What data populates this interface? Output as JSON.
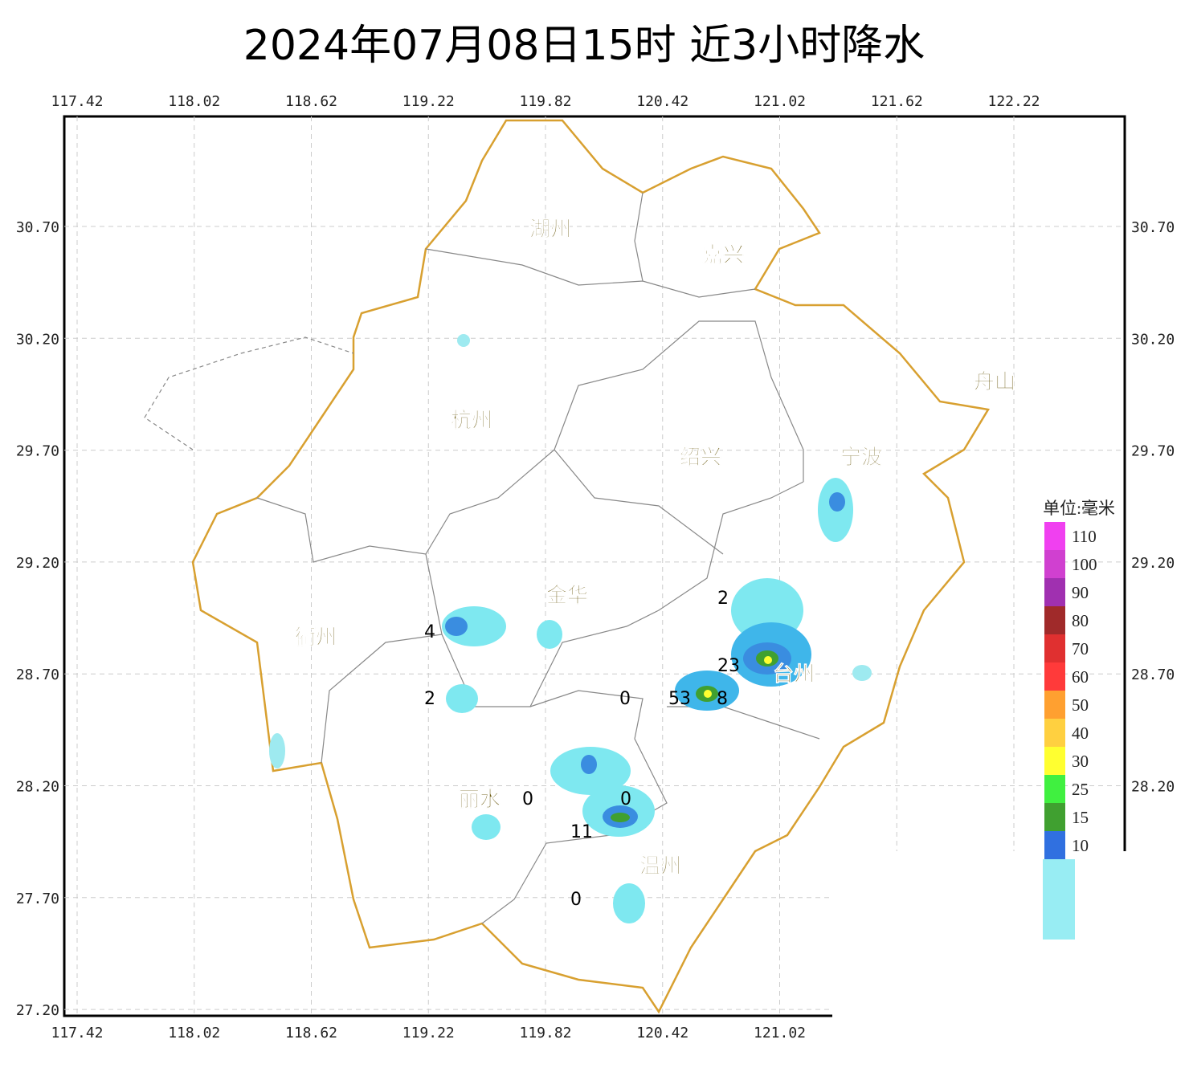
{
  "title": "2024年07月08日15时  近3小时降水",
  "lon_ticks": [
    "117.42",
    "118.02",
    "118.62",
    "119.22",
    "119.82",
    "120.42",
    "121.02",
    "121.62",
    "122.22"
  ],
  "lat_ticks": [
    "30.70",
    "30.20",
    "29.70",
    "29.20",
    "28.70",
    "28.20",
    "27.70",
    "27.20"
  ],
  "cities": [
    "湖州",
    "嘉兴",
    "杭州",
    "绍兴",
    "宁波",
    "舟山",
    "金华",
    "衢州",
    "台州",
    "丽水",
    "温州"
  ],
  "stations": [
    2,
    4,
    23,
    0,
    53,
    8,
    2,
    0,
    0,
    11,
    0
  ],
  "legend": {
    "title": "单位:毫米",
    "items": [
      {
        "label": "110",
        "color": "#f040f0"
      },
      {
        "label": "100",
        "color": "#d040d0"
      },
      {
        "label": "90",
        "color": "#a030b0"
      },
      {
        "label": "80",
        "color": "#a02a2a"
      },
      {
        "label": "70",
        "color": "#e03030"
      },
      {
        "label": "60",
        "color": "#ff3a3a"
      },
      {
        "label": "50",
        "color": "#ffa030"
      },
      {
        "label": "40",
        "color": "#ffd040"
      },
      {
        "label": "30",
        "color": "#ffff30"
      },
      {
        "label": "25",
        "color": "#40f040"
      },
      {
        "label": "15",
        "color": "#40a030"
      },
      {
        "label": "10",
        "color": "#3070e0"
      }
    ]
  }
}
